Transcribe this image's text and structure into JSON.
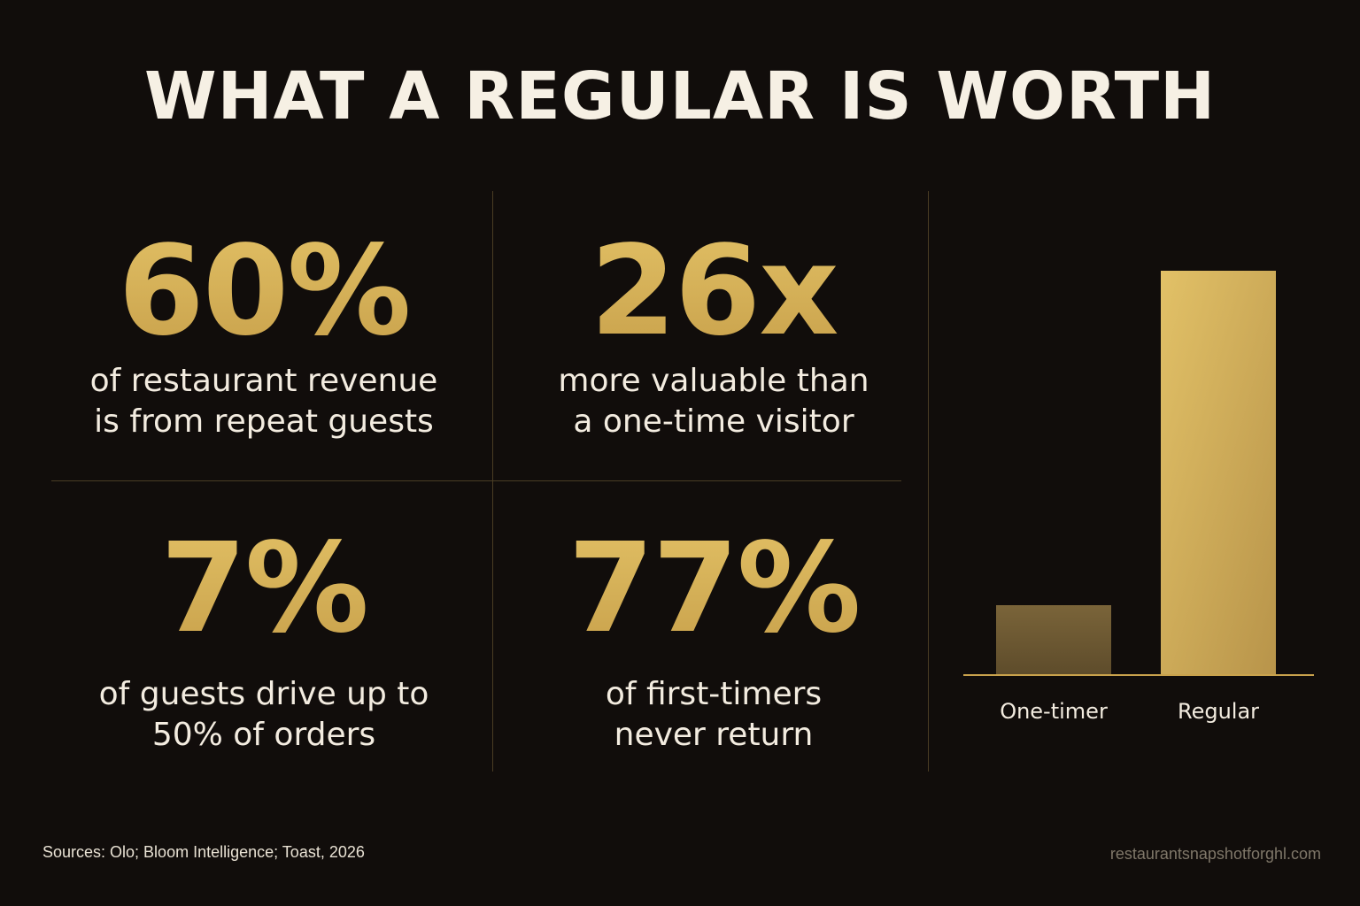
{
  "title": "WHAT A REGULAR IS WORTH",
  "stats": [
    {
      "value": "60%",
      "caption_line1": "of restaurant revenue",
      "caption_line2": "is from repeat guests"
    },
    {
      "value": "26x",
      "caption_line1": "more valuable than",
      "caption_line2": "a one-time visitor"
    },
    {
      "value": "7%",
      "caption_line1": "of guests drive up to",
      "caption_line2": "50% of orders"
    },
    {
      "value": "77%",
      "caption_line1": "of first-timers",
      "caption_line2": "never return"
    }
  ],
  "chart_data": {
    "type": "bar",
    "categories": [
      "One-timer",
      "Regular"
    ],
    "values": [
      1,
      26
    ],
    "title": "",
    "xlabel": "",
    "ylabel": "",
    "grid": false,
    "colors": [
      "#6e5a34",
      "#c9a24c"
    ]
  },
  "footer": {
    "sources": "Sources: Olo; Bloom Intelligence; Toast, 2026",
    "url": "restaurantsnapshotforghl.com"
  },
  "colors": {
    "background": "#110d0b",
    "accent_gold": "#d4b055",
    "text": "#f3ece0",
    "divider": "#4a3d24"
  }
}
